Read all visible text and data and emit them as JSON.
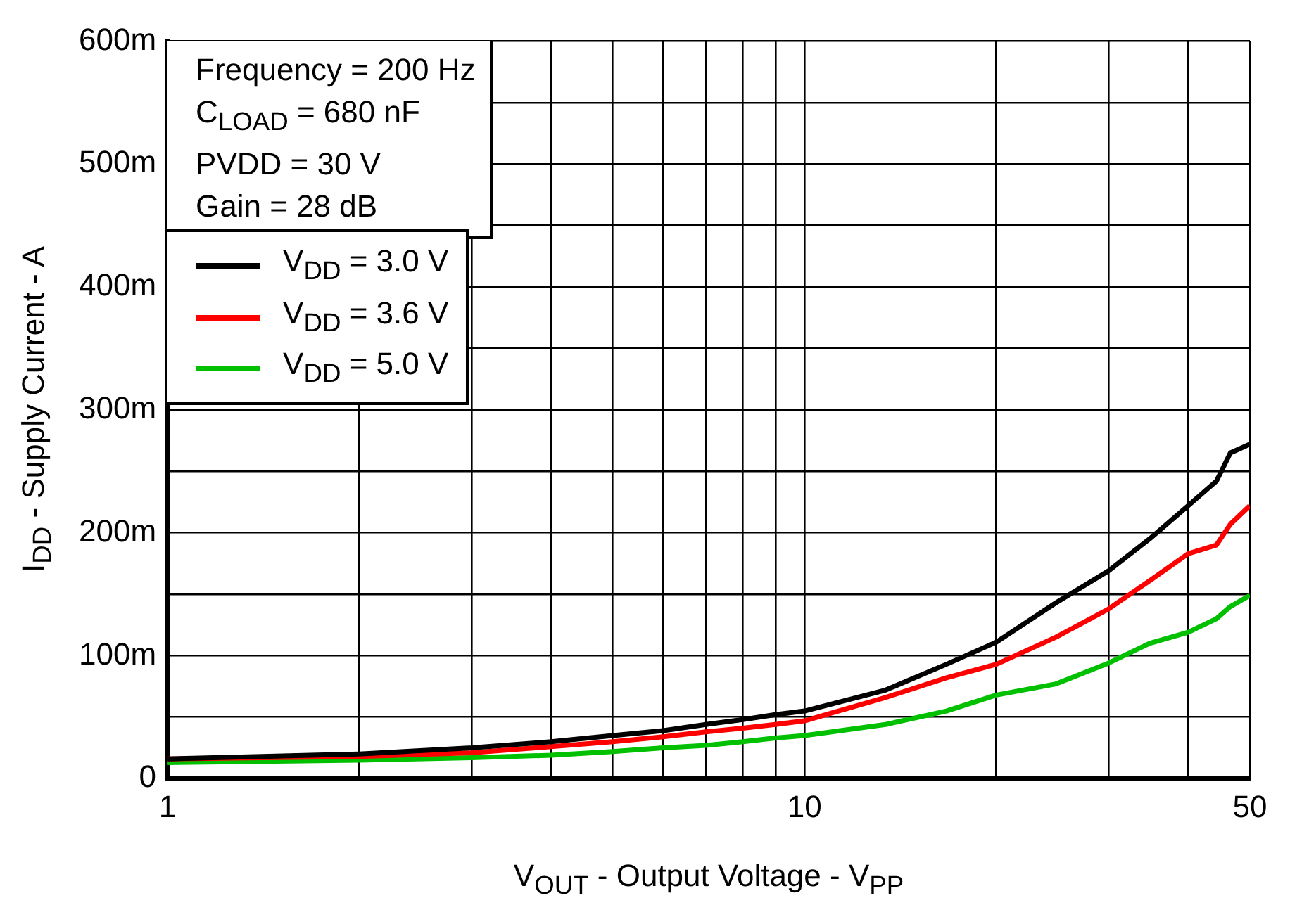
{
  "chart_data": {
    "type": "line",
    "xlabel": "V$_{OUT}$ - Output Voltage - V$_{PP}$",
    "ylabel": "I$_{DD}$ - Supply Current - A",
    "annotations": [
      "Frequency = 200 Hz",
      "C$_{LOAD}$ = 680 nF",
      "PVDD = 30 V",
      "Gain = 28 dB"
    ],
    "x": [
      1,
      2,
      3,
      4,
      5,
      6,
      7,
      8,
      9,
      10,
      13.4,
      16.7,
      20,
      24.8,
      30,
      34.8,
      40,
      44.3,
      46.6,
      50
    ],
    "series": [
      {
        "name": "V$_{DD}$ = 3.0 V",
        "color": "#000000",
        "values": [
          16,
          20,
          25,
          30,
          35,
          39,
          44,
          48,
          52,
          55,
          72,
          93,
          111,
          143,
          169,
          195,
          222,
          242,
          265,
          272
        ]
      },
      {
        "name": "V$_{DD}$ = 3.6 V",
        "color": "#ff0000",
        "values": [
          16,
          18,
          21,
          26,
          30,
          34,
          38,
          41,
          44,
          47,
          66,
          82,
          93,
          115,
          138,
          161,
          183,
          190,
          207,
          222
        ]
      },
      {
        "name": "V$_{DD}$ = 5.0 V",
        "color": "#00c000",
        "values": [
          13,
          15,
          17,
          19,
          22,
          25,
          27,
          30,
          33,
          35,
          44,
          55,
          68,
          77,
          94,
          110,
          119,
          130,
          140,
          149
        ]
      }
    ],
    "xlim": [
      1,
      50
    ],
    "xticks": [
      1,
      {
        "value": 2,
        "label": null
      },
      {
        "value": 3,
        "label": null
      },
      {
        "value": 4,
        "label": null
      },
      {
        "value": 5,
        "label": null
      },
      {
        "value": 6,
        "label": null
      },
      {
        "value": 7,
        "label": null
      },
      {
        "value": 8,
        "label": null
      },
      {
        "value": 9,
        "label": null
      },
      10,
      {
        "value": 20,
        "label": null
      },
      {
        "value": 30,
        "label": null
      },
      {
        "value": 40,
        "label": null
      },
      50
    ],
    "ylim": [
      0,
      600
    ],
    "yticks": [
      0,
      {
        "value": 50,
        "label": null
      },
      {
        "value": 100,
        "label": "100m"
      },
      {
        "value": 150,
        "label": null
      },
      {
        "value": 200,
        "label": "200m"
      },
      {
        "value": 250,
        "label": null
      },
      {
        "value": 300,
        "label": "300m"
      },
      {
        "value": 350,
        "label": null
      },
      {
        "value": 400,
        "label": "400m"
      },
      {
        "value": 450,
        "label": null
      },
      {
        "value": 500,
        "label": "500m"
      },
      {
        "value": 550,
        "label": null
      },
      {
        "value": 600,
        "label": "600m"
      }
    ],
    "log": "x",
    "grid": true,
    "legend": "top left",
    "marker": "none",
    "line_style": "solid"
  }
}
